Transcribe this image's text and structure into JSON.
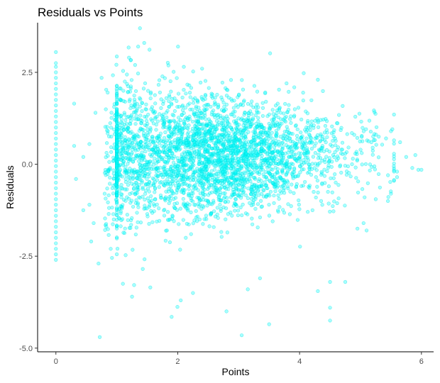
{
  "chart_data": {
    "type": "scatter",
    "title": "Residuals vs Points",
    "xlabel": "Points",
    "ylabel": "Residuals",
    "xlim": [
      -0.3,
      6.2
    ],
    "ylim": [
      -5.1,
      3.85
    ],
    "xticks": [
      "0",
      "2",
      "4",
      "6"
    ],
    "yticks": [
      "-5.0",
      "-2.5",
      "0.0",
      "2.5"
    ],
    "grid": false,
    "legend": "none",
    "point_color": "#00ffff",
    "point_stroke": "#00dede",
    "point_opacity": 0.35,
    "series": [
      {
        "points": [
          [
            0,
            3.05
          ],
          [
            0,
            2.75
          ],
          [
            0,
            2.65
          ],
          [
            0,
            2.5
          ],
          [
            0,
            2.35
          ],
          [
            0,
            2.2
          ],
          [
            0,
            2.05
          ],
          [
            0,
            1.9
          ],
          [
            0,
            1.75
          ],
          [
            0,
            1.6
          ],
          [
            0,
            1.45
          ],
          [
            0,
            1.3
          ],
          [
            0,
            1.15
          ],
          [
            0,
            1.0
          ],
          [
            0,
            0.85
          ],
          [
            0,
            0.7
          ],
          [
            0,
            0.55
          ],
          [
            0,
            0.4
          ],
          [
            0,
            0.25
          ],
          [
            0,
            0.1
          ],
          [
            0,
            -0.05
          ],
          [
            0,
            -0.2
          ],
          [
            0,
            -0.35
          ],
          [
            0,
            -0.5
          ],
          [
            0,
            -0.65
          ],
          [
            0,
            -0.8
          ],
          [
            0,
            -0.95
          ],
          [
            0,
            -1.1
          ],
          [
            0,
            -1.25
          ],
          [
            0,
            -1.4
          ],
          [
            0,
            -1.55
          ],
          [
            0,
            -1.7
          ],
          [
            0,
            -1.85
          ],
          [
            0,
            -2.0
          ],
          [
            0,
            -2.15
          ],
          [
            0,
            -2.3
          ],
          [
            0,
            -2.45
          ],
          [
            0,
            -2.6
          ],
          [
            0.3,
            1.65
          ],
          [
            0.3,
            0.5
          ],
          [
            0.33,
            -0.4
          ],
          [
            0.45,
            0.2
          ],
          [
            0.45,
            -1.25
          ],
          [
            0.55,
            -1.1
          ],
          [
            0.55,
            0.55
          ],
          [
            0.58,
            -2.1
          ],
          [
            0.62,
            -1.6
          ],
          [
            0.65,
            1.4
          ],
          [
            0.7,
            -2.7
          ],
          [
            0.72,
            -4.7
          ],
          [
            0.75,
            2.35
          ],
          [
            0.8,
            -0.8
          ],
          [
            0.85,
            1.95
          ],
          [
            0.9,
            -2.3
          ],
          [
            0.95,
            -1.5
          ],
          [
            0.98,
            1.2
          ],
          [
            1.2,
            2.9
          ],
          [
            1.3,
            2.7
          ],
          [
            1.35,
            3.2
          ],
          [
            1.38,
            3.7
          ],
          [
            1.45,
            3.3
          ],
          [
            1.1,
            -3.25
          ],
          [
            1.25,
            -3.6
          ],
          [
            1.55,
            -3.35
          ],
          [
            1.9,
            -4.15
          ],
          [
            2.05,
            -3.7
          ],
          [
            2.25,
            -3.5
          ],
          [
            2.8,
            -4.0
          ],
          [
            3.05,
            -4.65
          ],
          [
            3.5,
            -4.35
          ],
          [
            3.15,
            -3.4
          ],
          [
            3.35,
            -3.1
          ],
          [
            4.3,
            -3.45
          ],
          [
            4.5,
            -3.9
          ],
          [
            4.5,
            -4.25
          ],
          [
            4.5,
            -3.2
          ],
          [
            4.75,
            -3.2
          ],
          [
            4.3,
            2.3
          ],
          [
            2.4,
            2.6
          ],
          [
            2.1,
            2.65
          ],
          [
            5.5,
            0.9
          ],
          [
            5.65,
            0.6
          ],
          [
            5.75,
            0.2
          ],
          [
            5.85,
            -0.1
          ],
          [
            5.95,
            -0.15
          ],
          [
            6.0,
            -0.15
          ],
          [
            5.9,
            0.25
          ],
          [
            5.6,
            -0.2
          ],
          [
            5.5,
            -0.8
          ],
          [
            5.45,
            -1.0
          ],
          [
            5.6,
            -0.35
          ],
          [
            5.55,
            -0.45
          ],
          [
            5.3,
            0.75
          ],
          [
            5.2,
            0.45
          ],
          [
            5.25,
            -0.95
          ],
          [
            5.05,
            -1.6
          ],
          [
            4.95,
            -1.75
          ],
          [
            5.1,
            -1.8
          ]
        ]
      }
    ]
  }
}
